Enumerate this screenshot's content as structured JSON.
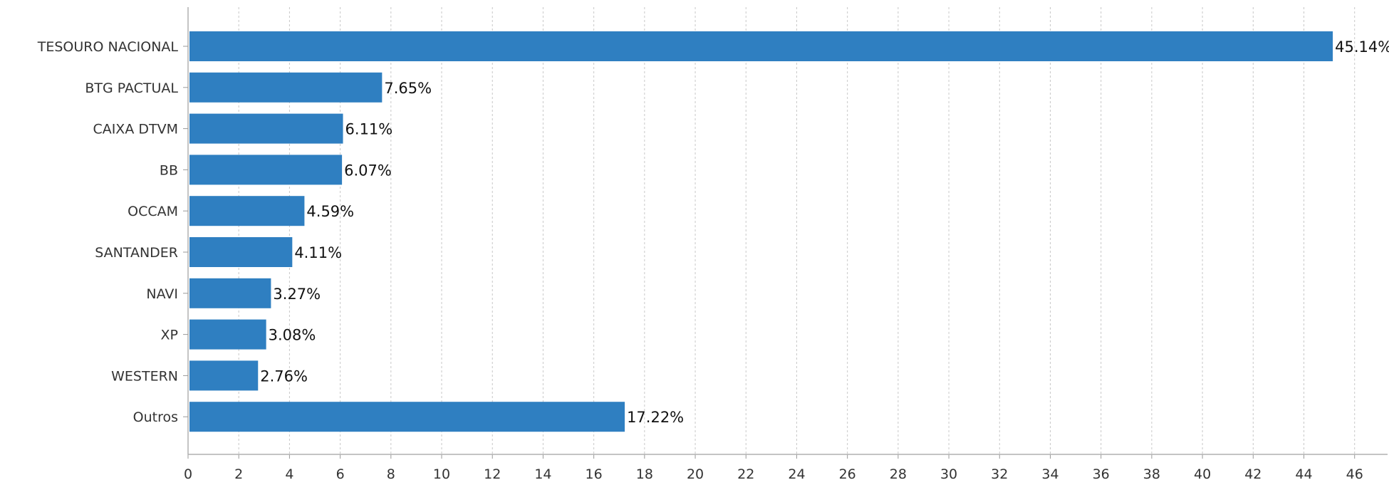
{
  "chart_data": {
    "type": "bar",
    "orientation": "horizontal",
    "categories": [
      "TESOURO NACIONAL",
      "BTG PACTUAL",
      "CAIXA DTVM",
      "BB",
      "OCCAM",
      "SANTANDER",
      "NAVI",
      "XP",
      "WESTERN",
      "Outros"
    ],
    "values": [
      45.14,
      7.65,
      6.11,
      6.07,
      4.59,
      4.11,
      3.27,
      3.08,
      2.76,
      17.22
    ],
    "data_labels": [
      "45.14%",
      "7.65%",
      "6.11%",
      "6.07%",
      "4.59%",
      "4.11%",
      "3.27%",
      "3.08%",
      "2.76%",
      "17.22%"
    ],
    "x_ticks": [
      "0",
      "2",
      "4",
      "6",
      "8",
      "10",
      "12",
      "14",
      "16",
      "18",
      "20",
      "22",
      "24",
      "26",
      "28",
      "30",
      "32",
      "34",
      "36",
      "38",
      "40",
      "42",
      "44",
      "46"
    ],
    "xlim": [
      0,
      47.3
    ],
    "title": "",
    "xlabel": "",
    "ylabel": "",
    "grid": "vertical dashed",
    "legend": "none",
    "bar_color": "#2f7fc1"
  }
}
